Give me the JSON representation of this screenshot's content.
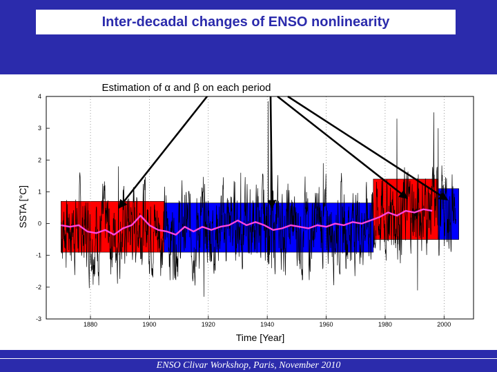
{
  "slide": {
    "title": "Inter-decadal changes of ENSO nonlinearity",
    "footer": "ENSO Clivar Workshop, Paris, November 2010"
  },
  "annotation": {
    "text": "Estimation of α and β on each period"
  },
  "colors": {
    "band": "#2b2bac",
    "raw_series": "#000000",
    "smooth_series": "#ff44dd",
    "period_red": "#ff0000",
    "period_blue": "#0000ff"
  },
  "chart_data": {
    "type": "line",
    "title": "",
    "xlabel": "Time [Year]",
    "ylabel": "SSTA [°C]",
    "xlim": [
      1865,
      2010
    ],
    "ylim": [
      -3,
      4
    ],
    "xticks": [
      1880,
      1900,
      1920,
      1940,
      1960,
      1980,
      2000
    ],
    "yticks": [
      -3,
      -2,
      -1,
      0,
      1,
      2,
      3,
      4
    ],
    "grid": "vertical dotted at x ticks",
    "periods": [
      {
        "start": 1870,
        "end": 1905,
        "ymin": -0.9,
        "ymax": 0.7,
        "color": "red"
      },
      {
        "start": 1905,
        "end": 1976,
        "ymin": -0.9,
        "ymax": 0.65,
        "color": "blue"
      },
      {
        "start": 1976,
        "end": 1998,
        "ymin": -0.5,
        "ymax": 1.4,
        "color": "red"
      },
      {
        "start": 1998,
        "end": 2005,
        "ymin": -0.5,
        "ymax": 1.1,
        "color": "blue"
      }
    ],
    "series": [
      {
        "name": "smoothed SSTA",
        "color": "pink",
        "x": [
          1870,
          1873,
          1876,
          1879,
          1882,
          1885,
          1888,
          1891,
          1894,
          1897,
          1900,
          1903,
          1906,
          1909,
          1912,
          1915,
          1918,
          1921,
          1924,
          1927,
          1930,
          1933,
          1936,
          1939,
          1942,
          1945,
          1948,
          1951,
          1954,
          1957,
          1960,
          1963,
          1966,
          1969,
          1972,
          1975,
          1978,
          1981,
          1984,
          1987,
          1990,
          1993,
          1996
        ],
        "y": [
          -0.05,
          -0.1,
          -0.05,
          -0.25,
          -0.3,
          -0.2,
          -0.35,
          -0.15,
          -0.05,
          0.25,
          -0.05,
          -0.2,
          -0.25,
          -0.35,
          -0.1,
          -0.25,
          -0.1,
          -0.2,
          -0.1,
          -0.05,
          0.1,
          -0.05,
          0.05,
          -0.05,
          -0.2,
          -0.15,
          -0.05,
          -0.1,
          -0.15,
          -0.05,
          -0.1,
          0.0,
          -0.05,
          0.05,
          0.0,
          0.1,
          0.2,
          0.35,
          0.25,
          0.4,
          0.35,
          0.45,
          0.4
        ]
      }
    ],
    "raw_series_note": "monthly SSTA (black), noisy; values range roughly -2.5 to 3.8"
  }
}
